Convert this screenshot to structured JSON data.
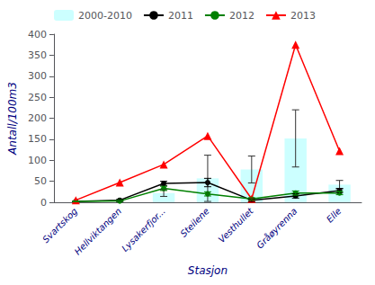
{
  "chart_data": {
    "type": "bar",
    "xlabel": "Stasjon",
    "ylabel": "Antall/100m3",
    "categories": [
      "Svartskog",
      "Hellviktangen",
      "Lysakerfjor...",
      "Steilene",
      "Vesthullet",
      "Gråøyrenna",
      "Elle"
    ],
    "series": [
      {
        "name": "2000-2010",
        "type": "bar",
        "color": "#ccffff",
        "values": [
          0,
          0,
          22,
          57,
          78,
          152,
          42
        ],
        "errors": [
          0,
          0,
          8,
          55,
          32,
          68,
          10
        ]
      },
      {
        "name": "2011",
        "type": "line",
        "color": "#000000",
        "marker": "circle",
        "values": [
          2,
          5,
          45,
          47,
          5,
          15,
          28
        ],
        "errors": [
          1,
          2,
          5,
          10,
          3,
          5,
          5
        ]
      },
      {
        "name": "2012",
        "type": "line",
        "color": "#008000",
        "marker": "circle",
        "values": [
          2,
          3,
          33,
          20,
          8,
          22,
          22
        ],
        "errors": [
          1,
          1,
          5,
          5,
          3,
          5,
          4
        ]
      },
      {
        "name": "2013",
        "type": "line",
        "color": "#ff0000",
        "marker": "triangle",
        "values": [
          5,
          47,
          90,
          158,
          8,
          375,
          122
        ]
      }
    ],
    "ylim": [
      0,
      400
    ],
    "yticks": [
      0,
      50,
      100,
      150,
      200,
      250,
      300,
      350,
      400
    ],
    "legend": "upper left",
    "grid": false
  }
}
